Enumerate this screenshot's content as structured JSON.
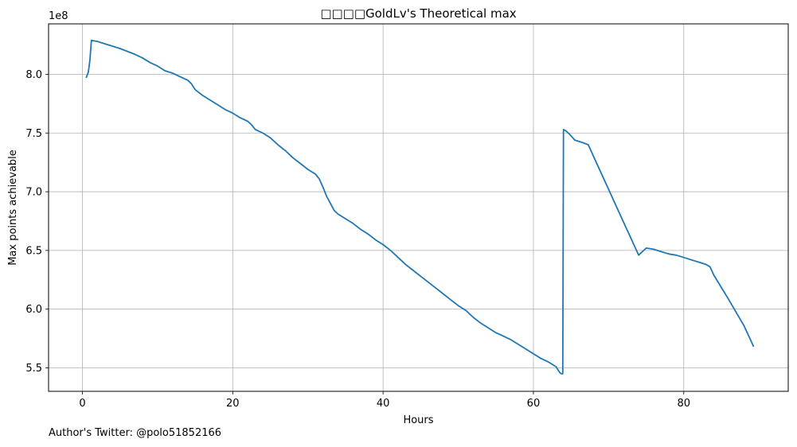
{
  "chart_data": {
    "type": "line",
    "title": "□□□□GoldLv's Theoretical max",
    "xlabel": "Hours",
    "ylabel": "Max points achievable",
    "offset_text": "1e8",
    "xlim": [
      -4.5,
      93.9
    ],
    "ylim": [
      5.3,
      8.43
    ],
    "xticks": [
      0,
      20,
      40,
      60,
      80
    ],
    "xtick_labels": [
      "0",
      "20",
      "40",
      "60",
      "80"
    ],
    "yticks": [
      5.5,
      6.0,
      6.5,
      7.0,
      7.5,
      8.0
    ],
    "ytick_labels": [
      "5.5",
      "6.0",
      "6.5",
      "7.0",
      "7.5",
      "8.0"
    ],
    "grid": true,
    "line_color": "#1f77b4",
    "series": [
      {
        "x": [
          0.5,
          0.8,
          1.0,
          1.2,
          2.0,
          3.0,
          5.0,
          7.0,
          8.0,
          9.0,
          10.0,
          11.0,
          12.0,
          13.0,
          14.0,
          14.5,
          15.0,
          16.0,
          17.0,
          18.0,
          19.0,
          20.0,
          21.0,
          22.0,
          22.5,
          23.0,
          24.0,
          25.0,
          26.0,
          27.0,
          28.0,
          29.0,
          30.0,
          31.0,
          31.5,
          32.0,
          32.5,
          33.0,
          33.5,
          34.0,
          35.0,
          36.0,
          37.0,
          38.0,
          39.0,
          40.0,
          41.0,
          42.0,
          43.0,
          44.0,
          45.0,
          46.0,
          47.0,
          48.0,
          49.0,
          50.0,
          51.0,
          52.0,
          53.0,
          54.0,
          55.0,
          56.0,
          57.0,
          58.0,
          59.0,
          60.0,
          61.0,
          62.0,
          63.0,
          63.5,
          63.7,
          63.9,
          64.0,
          64.3,
          64.8,
          65.5,
          66.5,
          67.3,
          68.0,
          70.0,
          72.0,
          73.0,
          74.0,
          75.0,
          76.0,
          77.0,
          78.0,
          79.0,
          80.0,
          81.0,
          82.0,
          83.0,
          83.5,
          84.0,
          86.0,
          88.0,
          89.3
        ],
        "y": [
          7.97,
          8.02,
          8.12,
          8.29,
          8.28,
          8.26,
          8.22,
          8.17,
          8.14,
          8.1,
          8.07,
          8.03,
          8.01,
          7.98,
          7.95,
          7.92,
          7.87,
          7.82,
          7.78,
          7.74,
          7.7,
          7.67,
          7.63,
          7.6,
          7.57,
          7.53,
          7.5,
          7.46,
          7.4,
          7.35,
          7.29,
          7.24,
          7.19,
          7.15,
          7.11,
          7.04,
          6.96,
          6.9,
          6.84,
          6.81,
          6.77,
          6.73,
          6.68,
          6.64,
          6.59,
          6.55,
          6.5,
          6.44,
          6.38,
          6.33,
          6.28,
          6.23,
          6.18,
          6.13,
          6.08,
          6.03,
          5.99,
          5.93,
          5.88,
          5.84,
          5.8,
          5.77,
          5.74,
          5.7,
          5.66,
          5.62,
          5.58,
          5.55,
          5.51,
          5.46,
          5.45,
          5.45,
          7.53,
          7.52,
          7.49,
          7.44,
          7.42,
          7.4,
          7.3,
          7.02,
          6.74,
          6.6,
          6.46,
          6.52,
          6.51,
          6.49,
          6.47,
          6.46,
          6.44,
          6.42,
          6.4,
          6.38,
          6.36,
          6.29,
          6.08,
          5.86,
          5.68
        ]
      }
    ]
  },
  "footer": {
    "text": "Author's Twitter: @polo51852166"
  }
}
